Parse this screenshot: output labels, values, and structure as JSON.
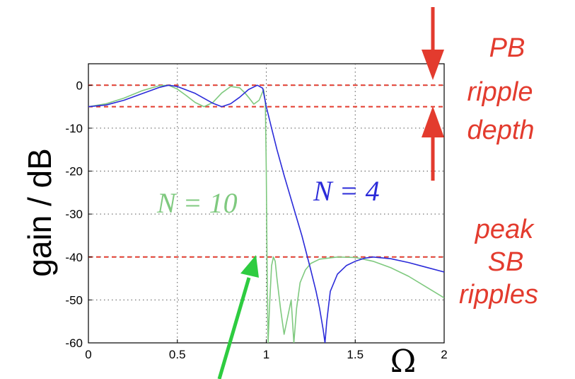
{
  "chart_data": {
    "type": "line",
    "xlabel": "Ω",
    "ylabel": "gain / dB",
    "xlim": [
      0,
      2
    ],
    "ylim": [
      -60,
      5
    ],
    "grid": true,
    "x_ticks": [
      "0",
      "0.5",
      "1",
      "1.5",
      "2"
    ],
    "y_ticks": [
      "0",
      "-10",
      "-20",
      "-30",
      "-40",
      "-50",
      "-60"
    ],
    "reference_lines": [
      {
        "y": 0,
        "color": "#e33b2e"
      },
      {
        "y": -5,
        "color": "#e33b2e"
      },
      {
        "y": -40,
        "color": "#e33b2e"
      }
    ],
    "series": [
      {
        "name": "N = 4",
        "color": "#2b2bd9",
        "x": [
          0,
          0.1,
          0.2,
          0.3,
          0.4,
          0.45,
          0.5,
          0.6,
          0.7,
          0.75,
          0.8,
          0.85,
          0.9,
          0.95,
          0.98,
          1.0,
          1.03,
          1.06,
          1.1,
          1.15,
          1.2,
          1.25,
          1.28,
          1.3,
          1.32,
          1.33,
          1.34,
          1.36,
          1.4,
          1.45,
          1.5,
          1.55,
          1.6,
          1.7,
          1.8,
          1.9,
          2.0
        ],
        "y": [
          -5,
          -4.6,
          -3.5,
          -2,
          -0.5,
          0,
          -0.3,
          -1.9,
          -4.2,
          -5,
          -4.3,
          -2.8,
          -1,
          0,
          -0.7,
          -5,
          -10,
          -15,
          -21,
          -28,
          -35,
          -43,
          -48,
          -52,
          -57,
          -60,
          -55,
          -48,
          -44,
          -42,
          -41,
          -40.3,
          -40,
          -40.4,
          -41.3,
          -42.4,
          -43.5
        ]
      },
      {
        "name": "N = 10",
        "color": "#7fc97f",
        "x": [
          0,
          0.1,
          0.2,
          0.3,
          0.4,
          0.45,
          0.5,
          0.55,
          0.6,
          0.65,
          0.7,
          0.75,
          0.8,
          0.85,
          0.88,
          0.9,
          0.93,
          0.96,
          0.985,
          0.995,
          1.0,
          1.005,
          1.01,
          1.02,
          1.03,
          1.04,
          1.05,
          1.06,
          1.08,
          1.1,
          1.12,
          1.14,
          1.155,
          1.17,
          1.19,
          1.22,
          1.25,
          1.3,
          1.4,
          1.5,
          1.6,
          1.7,
          1.8,
          1.9,
          2.0
        ],
        "y": [
          -5,
          -4.3,
          -3,
          -1.3,
          -0.1,
          0,
          -0.9,
          -2.4,
          -4,
          -5,
          -4,
          -1.8,
          -0.3,
          -0.6,
          -1.8,
          -2.8,
          -4.4,
          -3.5,
          -1,
          -4,
          -20,
          -45,
          -60,
          -50,
          -42,
          -40,
          -41,
          -45,
          -52,
          -58,
          -54,
          -50,
          -60,
          -52,
          -46,
          -43,
          -41.5,
          -40.5,
          -40,
          -40.1,
          -41,
          -42.5,
          -44.5,
          -47,
          -49.5
        ]
      }
    ],
    "annotations": [
      {
        "text": "PB",
        "color": "#e33b2e"
      },
      {
        "text": "ripple",
        "color": "#e33b2e"
      },
      {
        "text": "depth",
        "color": "#e33b2e"
      },
      {
        "text": "peak",
        "color": "#e33b2e"
      },
      {
        "text": "SB",
        "color": "#e33b2e"
      },
      {
        "text": "ripples",
        "color": "#e33b2e"
      }
    ],
    "arrows": [
      {
        "meaning": "PB ripple depth (upper arrow pointing down to 0 dB)",
        "color": "#e33b2e"
      },
      {
        "meaning": "PB ripple depth (lower arrow pointing up to -5 dB)",
        "color": "#e33b2e"
      },
      {
        "meaning": "pointer to cutoff at Omega = 1",
        "color": "#2ecc40"
      }
    ]
  }
}
